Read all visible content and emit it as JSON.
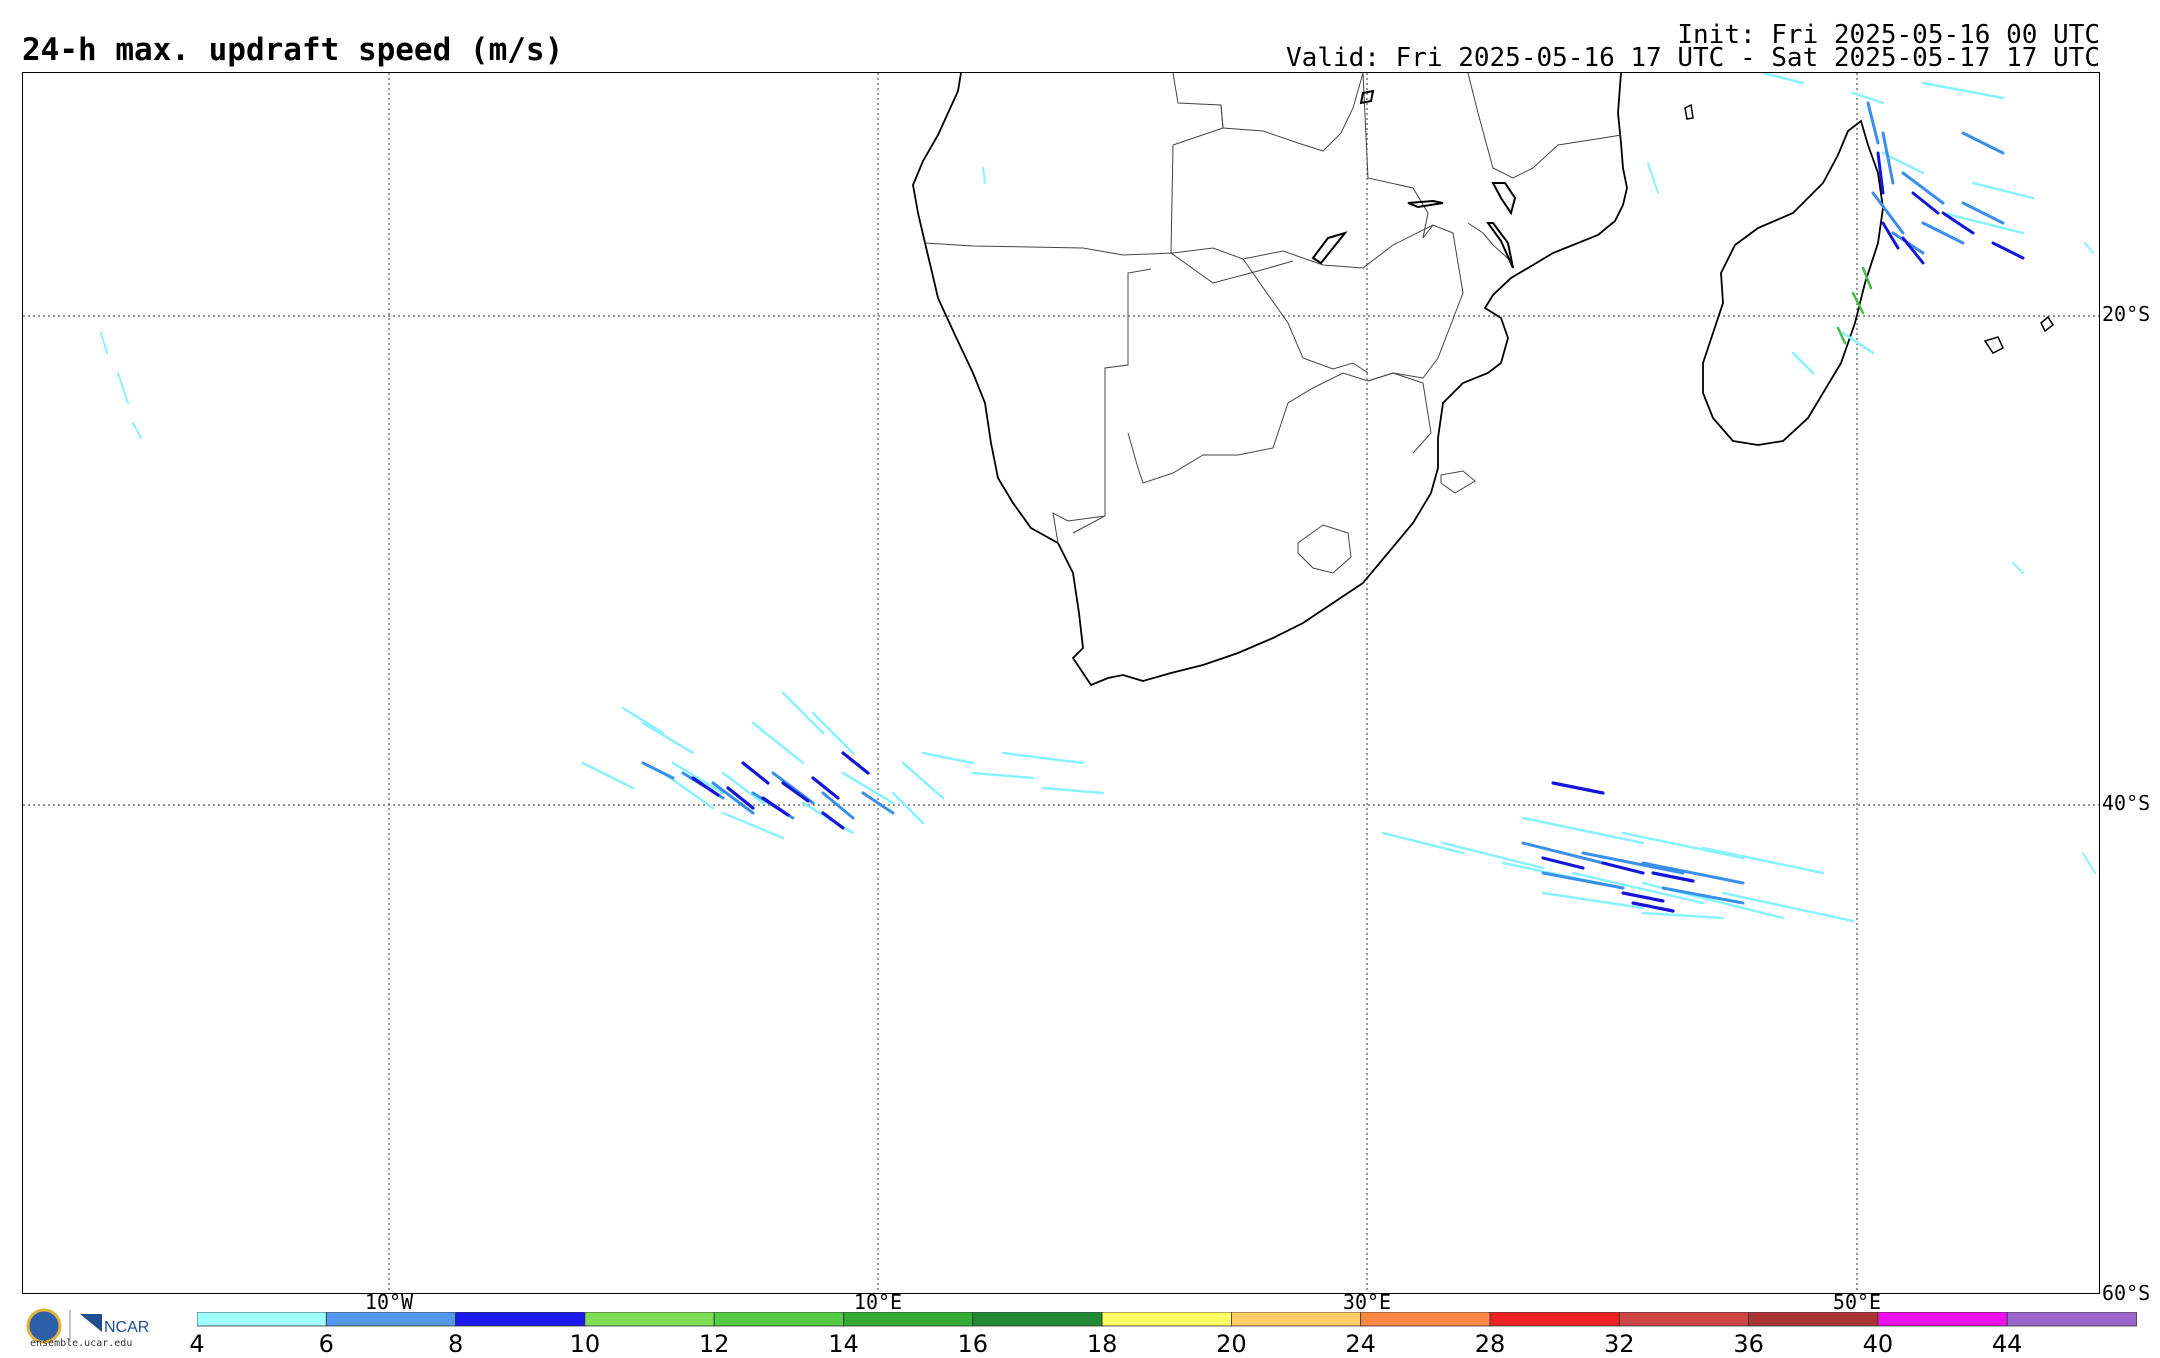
{
  "header": {
    "title": "24-h max. updraft speed (m/s)",
    "init": "Init: Fri 2025-05-16 00 UTC",
    "valid": "Valid: Fri 2025-05-16 17 UTC - Sat 2025-05-17 17 UTC"
  },
  "map": {
    "latitude_labels": [
      "20°S",
      "40°S",
      "60°S"
    ],
    "longitude_labels": [
      "10°W",
      "10°E",
      "30°E",
      "50°E"
    ],
    "gridline_style": "dotted",
    "region": "Southern Africa and South Atlantic / Indian Ocean"
  },
  "colorbar": {
    "ticks": [
      "4",
      "6",
      "8",
      "10",
      "12",
      "14",
      "16",
      "18",
      "20",
      "24",
      "28",
      "32",
      "36",
      "40",
      "44"
    ],
    "colors": [
      "#a0ffff",
      "#5599ee",
      "#1a1aee",
      "#7ddd55",
      "#55cc44",
      "#33aa33",
      "#228833",
      "#ffff66",
      "#ffcc66",
      "#ff8844",
      "#ee2222",
      "#cc4444",
      "#aa3333",
      "#ee11ee",
      "#9966cc"
    ]
  },
  "logo": {
    "org": "NCAR",
    "url": "ensemble.ucar.edu"
  }
}
